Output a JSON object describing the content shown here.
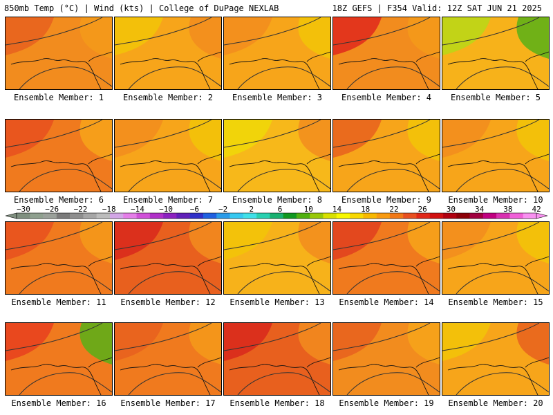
{
  "header": {
    "left": "850mb Temp (°C) | Wind (kts) | College of DuPage NEXLAB",
    "right": "18Z GEFS | F354 Valid: 12Z SAT JUN 21 2025"
  },
  "colorbar": {
    "tick_labels": [
      "-30",
      "-26",
      "-22",
      "-18",
      "-14",
      "-10",
      "-6",
      "-2",
      "2",
      "6",
      "10",
      "14",
      "18",
      "22",
      "26",
      "30",
      "34",
      "38",
      "42"
    ],
    "colors": [
      "#7f8f7f",
      "#8fa08f",
      "#9aa09a",
      "#7a7a7a",
      "#8e8e8e",
      "#a6a6a6",
      "#bcbcbc",
      "#d2a6e6",
      "#e47ee8",
      "#d050d8",
      "#b030c8",
      "#8c22c0",
      "#6020b8",
      "#3030c8",
      "#2060e0",
      "#2a9be8",
      "#36c8f0",
      "#40e0e8",
      "#28d0b0",
      "#18b070",
      "#109820",
      "#50b010",
      "#98c808",
      "#d8e000",
      "#f8f800",
      "#f8d800",
      "#f8b800",
      "#f89a10",
      "#f07818",
      "#e85020",
      "#e02818",
      "#d01010",
      "#b00010",
      "#8c0008",
      "#a00040",
      "#c00080",
      "#d830b0",
      "#f060d8",
      "#f890f0"
    ]
  },
  "panels": [
    {
      "label": "Ensemble Member: 1",
      "bg": "#f28c1e",
      "blobs": [
        {
          "c": "#e8601e"
        },
        {
          "c": "#f59a1a"
        }
      ]
    },
    {
      "label": "Ensemble Member: 2",
      "bg": "#f7a51a",
      "blobs": [
        {
          "c": "#f2c408"
        },
        {
          "c": "#f28c1e"
        }
      ]
    },
    {
      "label": "Ensemble Member: 3",
      "bg": "#f7a51a",
      "blobs": [
        {
          "c": "#f28c1e"
        },
        {
          "c": "#f2c408"
        }
      ]
    },
    {
      "label": "Ensemble Member: 4",
      "bg": "#f28c1e",
      "blobs": [
        {
          "c": "#e0281c"
        },
        {
          "c": "#f59a1a"
        }
      ]
    },
    {
      "label": "Ensemble Member: 5",
      "bg": "#f7b21a",
      "blobs": [
        {
          "c": "#b8d818"
        },
        {
          "c": "#58b018"
        }
      ]
    },
    {
      "label": "Ensemble Member: 6",
      "bg": "#f07a1e",
      "blobs": [
        {
          "c": "#e8501e"
        },
        {
          "c": "#f7a51a"
        }
      ]
    },
    {
      "label": "Ensemble Member: 7",
      "bg": "#f7a51a",
      "blobs": [
        {
          "c": "#f28c1e"
        },
        {
          "c": "#f2c408"
        }
      ]
    },
    {
      "label": "Ensemble Member: 8",
      "bg": "#f7b81a",
      "blobs": [
        {
          "c": "#f0d808"
        },
        {
          "c": "#f28c1e"
        }
      ]
    },
    {
      "label": "Ensemble Member: 9",
      "bg": "#f7a51a",
      "blobs": [
        {
          "c": "#e8601e"
        },
        {
          "c": "#f2c408"
        }
      ]
    },
    {
      "label": "Ensemble Member: 10",
      "bg": "#f7a51a",
      "blobs": [
        {
          "c": "#f28c1e"
        },
        {
          "c": "#f2c408"
        }
      ]
    },
    {
      "label": "Ensemble Member: 11",
      "bg": "#f07a1e",
      "blobs": [
        {
          "c": "#e8501e"
        },
        {
          "c": "#f59a1a"
        }
      ]
    },
    {
      "label": "Ensemble Member: 12",
      "bg": "#e8601e",
      "blobs": [
        {
          "c": "#d8281c"
        },
        {
          "c": "#f28c1e"
        }
      ]
    },
    {
      "label": "Ensemble Member: 13",
      "bg": "#f7b21a",
      "blobs": [
        {
          "c": "#f2c408"
        },
        {
          "c": "#f28c1e"
        }
      ]
    },
    {
      "label": "Ensemble Member: 14",
      "bg": "#f07a1e",
      "blobs": [
        {
          "c": "#e0401e"
        },
        {
          "c": "#f7a51a"
        }
      ]
    },
    {
      "label": "Ensemble Member: 15",
      "bg": "#f7a51a",
      "blobs": [
        {
          "c": "#f28c1e"
        },
        {
          "c": "#f2c408"
        }
      ]
    },
    {
      "label": "Ensemble Member: 16",
      "bg": "#f07a1e",
      "blobs": [
        {
          "c": "#e8401e"
        },
        {
          "c": "#58b018"
        }
      ]
    },
    {
      "label": "Ensemble Member: 17",
      "bg": "#f07a1e",
      "blobs": [
        {
          "c": "#e8601e"
        },
        {
          "c": "#f59a1a"
        }
      ]
    },
    {
      "label": "Ensemble Member: 18",
      "bg": "#e8601e",
      "blobs": [
        {
          "c": "#d8281c"
        },
        {
          "c": "#f28c1e"
        }
      ]
    },
    {
      "label": "Ensemble Member: 19",
      "bg": "#f28c1e",
      "blobs": [
        {
          "c": "#e8601e"
        },
        {
          "c": "#f7a51a"
        }
      ]
    },
    {
      "label": "Ensemble Member: 20",
      "bg": "#f7a51a",
      "blobs": [
        {
          "c": "#f2c408"
        },
        {
          "c": "#e8601e"
        }
      ]
    }
  ]
}
